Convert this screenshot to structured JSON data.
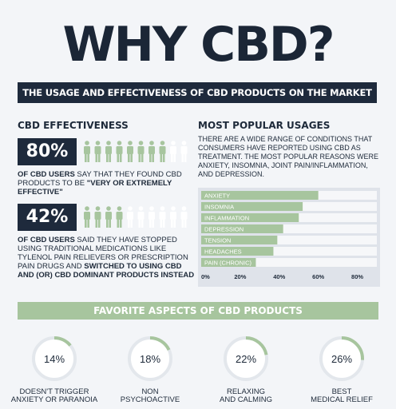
{
  "title": "WHY CBD?",
  "subtitle": "THE USAGE AND EFFECTIVENESS OF CBD PRODUCTS ON THE MARKET",
  "effectiveness": {
    "heading": "CBD EFFECTIVENESS",
    "stats": [
      {
        "pct": "80%",
        "filled": 8,
        "total": 10,
        "lead": "OF CBD USERS",
        "text": " SAY THAT THEY FOUND CBD PRODUCTS TO BE ",
        "emph": "\"VERY OR EXTREMELY EFFECTIVE\""
      },
      {
        "pct": "42%",
        "filled": 4,
        "total": 10,
        "lead": "OF CBD USERS",
        "text": " SAID THEY HAVE STOPPED USING TRADITIONAL MEDICATIONS LIKE TYLENOL PAIN RELIEVERS OR PRESCRIPTION PAIN DRUGS AND ",
        "emph": "SWITCHED TO USING CBD AND (OR) CBD DOMINANT PRODUCTS INSTEAD"
      }
    ]
  },
  "usages": {
    "heading": "MOST POPULAR USAGES",
    "text": "THERE ARE A WIDE RANGE OF CONDITIONS THAT CONSUMERS HAVE REPORTED USING CBD AS TREATMENT. THE MOST POPULAR REASONS WERE ANXIETY, INSOMNIA, JOINT PAIN/INFLAMMATION, AND DEPRESSION."
  },
  "favorites": {
    "heading": "FAVORITE ASPECTS OF CBD PRODUCTS",
    "items": [
      {
        "pct": "14%",
        "value": 14,
        "label1": "DOESN'T TRIGGER",
        "label2": "ANXIETY OR PARANOIA"
      },
      {
        "pct": "18%",
        "value": 18,
        "label1": "NON",
        "label2": "PSYCHOACTIVE"
      },
      {
        "pct": "22%",
        "value": 22,
        "label1": "RELAXING",
        "label2": "AND CALMING"
      },
      {
        "pct": "26%",
        "value": 26,
        "label1": "BEST",
        "label2": "MEDICAL RELIEF"
      }
    ]
  },
  "colors": {
    "navy": "#1e2a3c",
    "green": "#a7c59e",
    "ring_bg": "#e3e7ec",
    "people_filled": "#a7c59e",
    "people_empty": "#ffffff"
  },
  "chart_data": {
    "type": "bar",
    "orientation": "horizontal",
    "categories": [
      "ANXIETY",
      "INSOMNIA",
      "INFLAMMATION",
      "DEPRESSION",
      "TENSION",
      "HEADACHES",
      "PAIN (CHRONIC)"
    ],
    "values": [
      60,
      52,
      50,
      42,
      39,
      37,
      28
    ],
    "xticks": [
      "0%",
      "20%",
      "40%",
      "60%",
      "80%"
    ],
    "xlim": [
      0,
      90
    ],
    "xlabel": "",
    "ylabel": ""
  }
}
